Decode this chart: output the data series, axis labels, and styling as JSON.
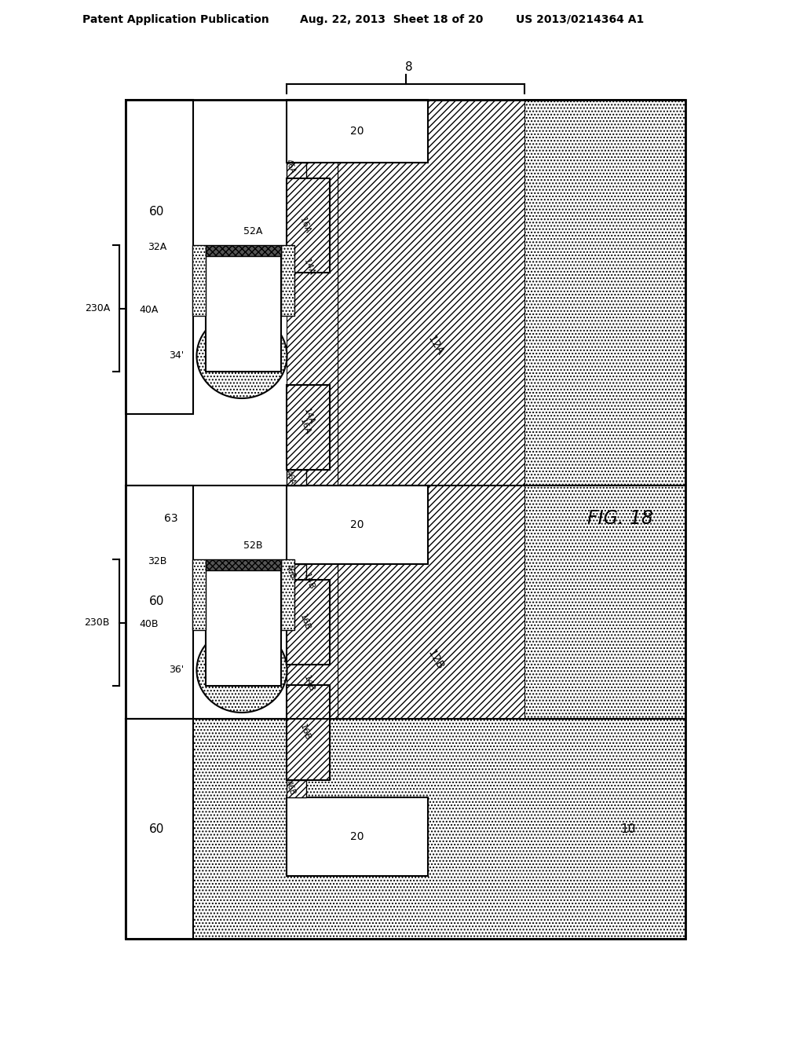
{
  "title_left": "Patent Application Publication",
  "title_mid": "Aug. 22, 2013  Sheet 18 of 20",
  "title_right": "US 2013/0214364 A1",
  "fig_label": "FIG. 18",
  "bg_color": "#ffffff"
}
